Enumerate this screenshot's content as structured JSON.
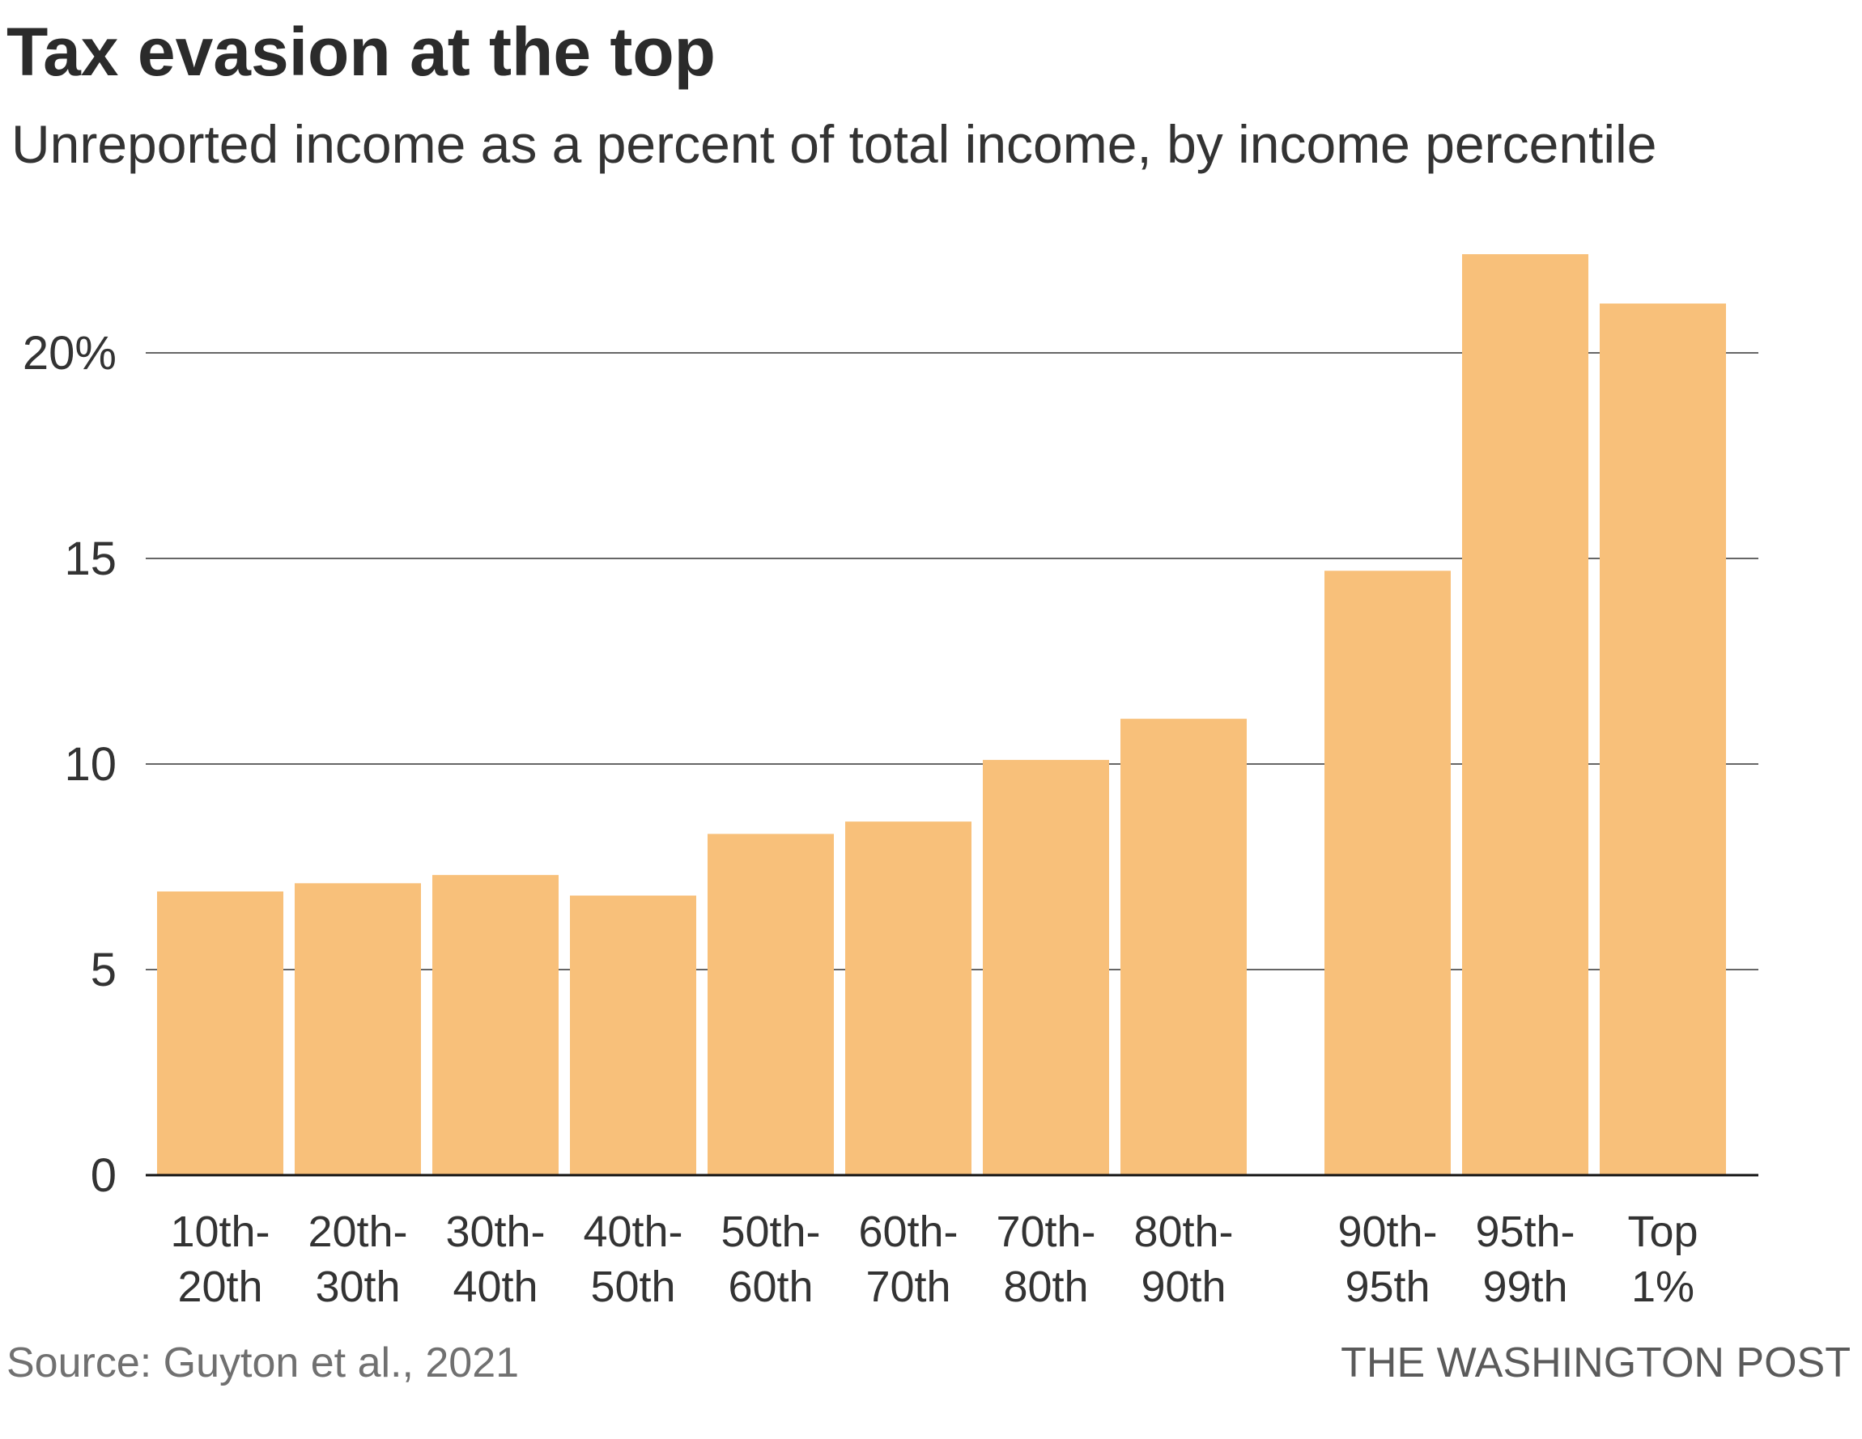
{
  "header": {
    "title": "Tax evasion at the top",
    "subtitle": "Unreported income as a percent of total income, by income percentile"
  },
  "footer": {
    "source": "Source: Guyton et al., 2021",
    "credit": "THE WASHINGTON POST"
  },
  "colors": {
    "bar": "#f8c07a",
    "gridline": "#333333",
    "baseline": "#111111",
    "text": "#333333"
  },
  "chart_data": {
    "type": "bar",
    "title": "Tax evasion at the top",
    "subtitle": "Unreported income as a percent of total income, by income percentile",
    "xlabel": "",
    "ylabel": "",
    "categories": [
      [
        "10th-",
        "20th"
      ],
      [
        "20th-",
        "30th"
      ],
      [
        "30th-",
        "40th"
      ],
      [
        "40th-",
        "50th"
      ],
      [
        "50th-",
        "60th"
      ],
      [
        "60th-",
        "70th"
      ],
      [
        "70th-",
        "80th"
      ],
      [
        "80th-",
        "90th"
      ],
      [
        "90th-",
        "95th"
      ],
      [
        "95th-",
        "99th"
      ],
      [
        "Top",
        "1%"
      ]
    ],
    "values": [
      6.9,
      7.1,
      7.3,
      6.8,
      8.3,
      8.6,
      10.1,
      11.1,
      14.7,
      22.4,
      21.2
    ],
    "ylim": [
      0,
      23
    ],
    "yticks": [
      0,
      5,
      10,
      15,
      20
    ],
    "ytick_labels": [
      "0",
      "5",
      "10",
      "15",
      "20%"
    ],
    "grid": true,
    "legend": "none"
  }
}
